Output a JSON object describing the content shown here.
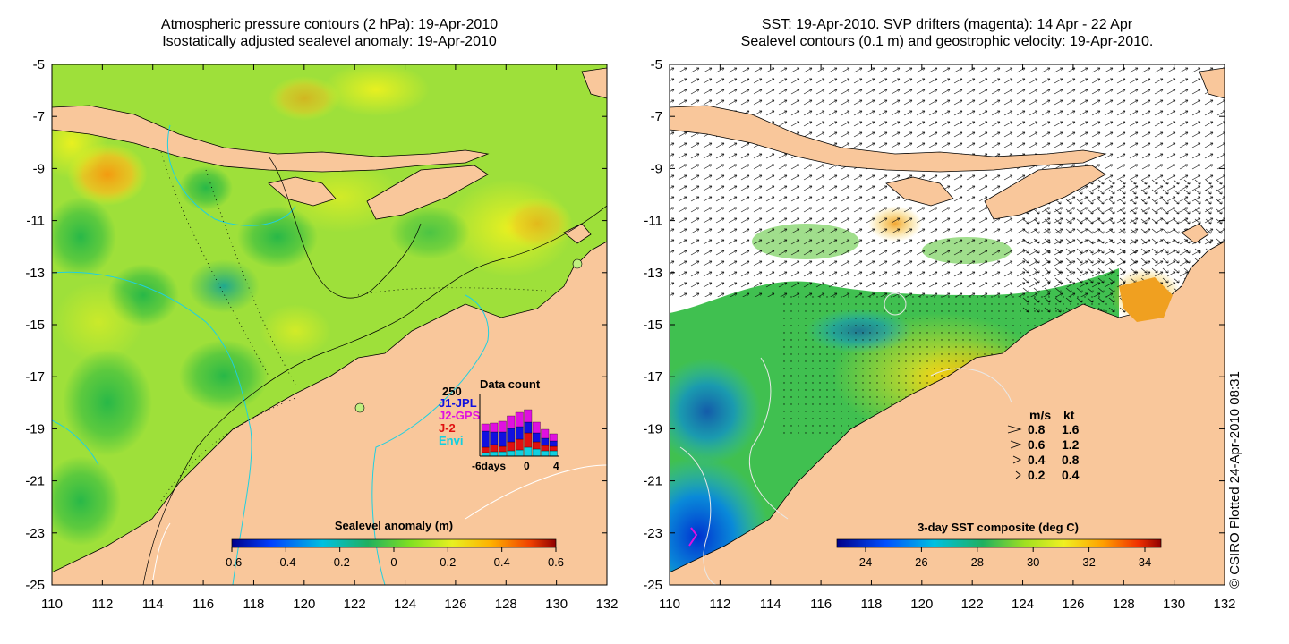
{
  "left_panel": {
    "title_line1": "Atmospheric pressure contours (2 hPa): 19-Apr-2010",
    "title_line2": "Isostatically adjusted sealevel anomaly: 19-Apr-2010",
    "colorbar": {
      "label": "Sealevel anomaly (m)",
      "ticks": [
        "-0.6",
        "-0.4",
        "-0.2",
        "0",
        "0.2",
        "0.4",
        "0.6"
      ],
      "min": -0.6,
      "max": 0.6
    },
    "data_count": {
      "title": "Data count",
      "ymax_label": "250",
      "xlabel_left": "-6days",
      "xlabel_mid": "0",
      "xlabel_right": "4",
      "legend": [
        {
          "name": "J1-JPL",
          "color": "#1010e0"
        },
        {
          "name": "J2-GPS",
          "color": "#e010e0"
        },
        {
          "name": "J-2",
          "color": "#e01010"
        },
        {
          "name": "Envi",
          "color": "#10d0e0"
        }
      ]
    }
  },
  "right_panel": {
    "title_line1": "SST: 19-Apr-2010. SVP drifters (magenta): 14 Apr - 22 Apr",
    "title_line2": "Sealevel contours (0.1 m) and geostrophic velocity: 19-Apr-2010.",
    "colorbar": {
      "label": "3-day SST composite (deg C)",
      "ticks": [
        "24",
        "26",
        "28",
        "30",
        "32",
        "34"
      ]
    },
    "velocity_legend": {
      "header_ms": "m/s",
      "header_kt": "kt",
      "rows": [
        {
          "ms": "0.8",
          "kt": "1.6"
        },
        {
          "ms": "0.6",
          "kt": "1.2"
        },
        {
          "ms": "0.4",
          "kt": "0.8"
        },
        {
          "ms": "0.2",
          "kt": "0.4"
        }
      ]
    }
  },
  "axes": {
    "x_ticks": [
      "110",
      "112",
      "114",
      "116",
      "118",
      "120",
      "122",
      "124",
      "126",
      "128",
      "130",
      "132"
    ],
    "y_ticks": [
      "-5",
      "-7",
      "-9",
      "-11",
      "-13",
      "-15",
      "-17",
      "-19",
      "-21",
      "-23",
      "-25"
    ],
    "lon_range": [
      110,
      132
    ],
    "lat_range": [
      -25,
      -5
    ]
  },
  "credit": "© CSIRO Plotted 24-Apr-2010 08:31",
  "colors": {
    "land": "#f9c79b",
    "left_ocean": "#9ee03a",
    "right_ocean": "#ffffff"
  }
}
